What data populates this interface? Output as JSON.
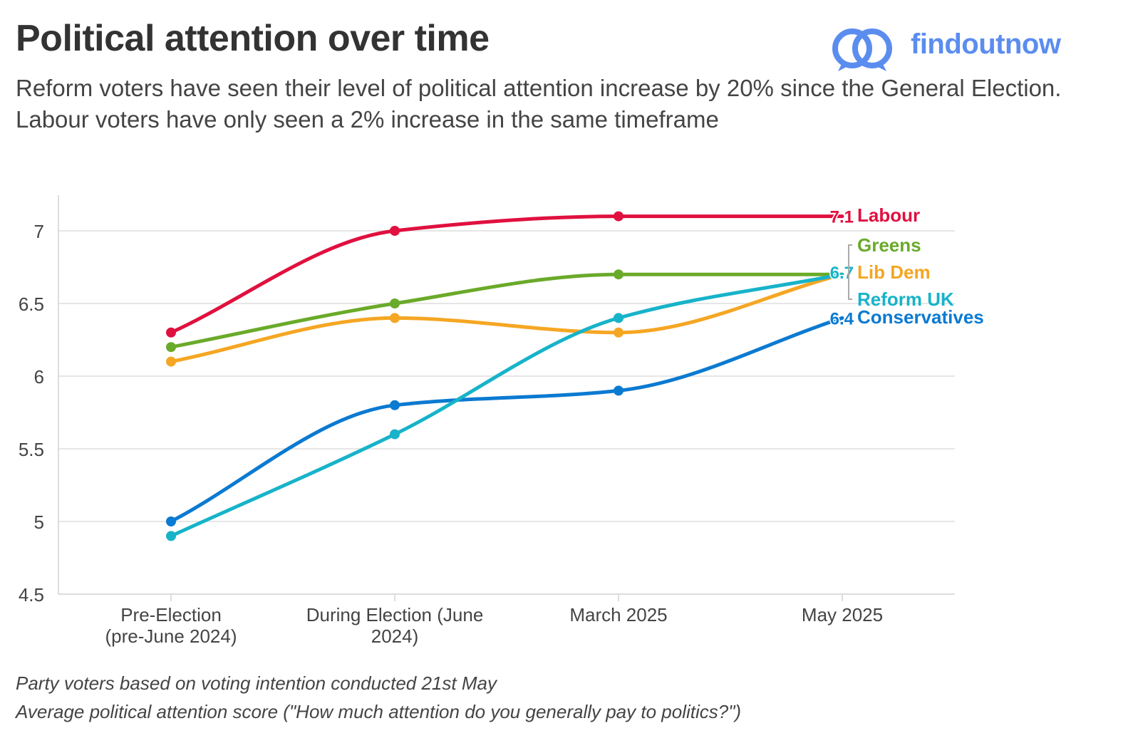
{
  "header": {
    "title": "Political attention over time",
    "subtitle": "Reform voters have seen their level of political attention increase by 20% since the General Election. Labour voters have only seen a 2% increase in the same timeframe",
    "brand": "findoutnow"
  },
  "footnotes": {
    "line1": "Party voters based on voting intention conducted 21st May",
    "line2": "Average political attention score (\"How much attention do you generally pay to politics?\")"
  },
  "chart_data": {
    "type": "line",
    "title": "Political attention over time",
    "xlabel": "",
    "ylabel": "",
    "ylim": [
      4.5,
      7.2
    ],
    "yticks": [
      4.5,
      5,
      5.5,
      6,
      6.5,
      7
    ],
    "ytick_labels": [
      "4.5",
      "5",
      "5.5",
      "6",
      "6.5",
      "7"
    ],
    "categories": [
      [
        "Pre-Election",
        "(pre-June 2024)"
      ],
      [
        "During Election (June",
        "2024)"
      ],
      [
        "March 2025"
      ],
      [
        "May 2025"
      ]
    ],
    "grid": "horizontal",
    "legend": "direct labels at right end of lines",
    "series": [
      {
        "name": "Labour",
        "color": "#e0103f",
        "values": [
          6.3,
          7.0,
          7.1,
          7.1
        ],
        "end_label": "7.1"
      },
      {
        "name": "Greens",
        "color": "#6aaa2a",
        "values": [
          6.2,
          6.5,
          6.7,
          6.7
        ]
      },
      {
        "name": "Lib Dem",
        "color": "#f5a623",
        "values": [
          6.1,
          6.4,
          6.3,
          6.7
        ]
      },
      {
        "name": "Reform UK",
        "color": "#17b3c9",
        "values": [
          4.9,
          5.6,
          6.4,
          6.7
        ],
        "end_label": "6.7"
      },
      {
        "name": "Conservatives",
        "color": "#0b7ad1",
        "values": [
          5.0,
          5.8,
          5.9,
          6.4
        ],
        "end_label": "6.4"
      }
    ]
  }
}
